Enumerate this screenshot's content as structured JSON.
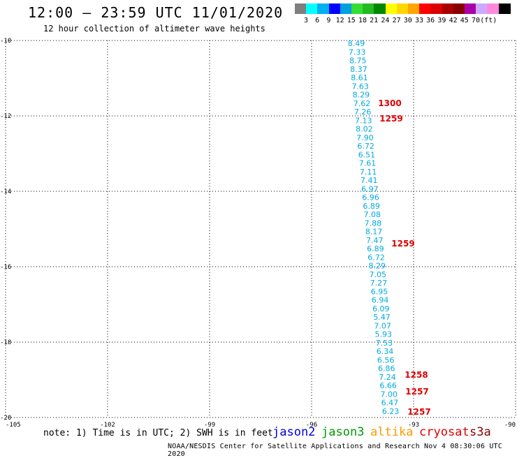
{
  "title": "12:00 — 23:59 UTC 11/01/2020",
  "subtitle": "12 hour collection of altimeter wave heights",
  "color_scale": {
    "colors": [
      "#7f7f7f",
      "#00ffff",
      "#00b0f0",
      "#0000ff",
      "#009fdf",
      "#33dd33",
      "#22bb22",
      "#008800",
      "#ffff00",
      "#ffd700",
      "#ffa500",
      "#ff0000",
      "#dd0000",
      "#aa0000",
      "#880000",
      "#aa00aa",
      "#ccaaff",
      "#ff88dd",
      "#000000"
    ],
    "labels": [
      "3",
      "6",
      "9",
      "12",
      "15",
      "18",
      "21",
      "24",
      "27",
      "30",
      "33",
      "36",
      "39",
      "42",
      "45",
      "70",
      "(ft)"
    ]
  },
  "axes": {
    "lat_labels": [
      "-10",
      "-12",
      "-14",
      "-16",
      "-18",
      "-20"
    ],
    "lon_labels": [
      "-105",
      "-102",
      "-99",
      "-96",
      "-93",
      "-90"
    ]
  },
  "wave_heights": {
    "color": "#00aadd",
    "values": [
      "8.49",
      "7.33",
      "8.75",
      "8.37",
      "8.61",
      "7.63",
      "8.29",
      "7.62",
      "7.26",
      "7.13",
      "8.02",
      "7.90",
      "6.72",
      "6.51",
      "7.61",
      "7.11",
      "7.41",
      "6.97",
      "6.96",
      "6.89",
      "7.08",
      "7.88",
      "8.17",
      "7.47",
      "6.89",
      "6.72",
      "8.29",
      "7.05",
      "7.27",
      "6.95",
      "6.94",
      "6.09",
      "5.47",
      "7.07",
      "5.93",
      "7.53",
      "6.34",
      "6.56",
      "6.86",
      "7.24",
      "6.66",
      "7.00",
      "6.47",
      "6.23"
    ]
  },
  "time_labels": {
    "color": "#dd0000",
    "values": [
      "1300",
      "1259",
      "1259",
      "1258",
      "1257",
      "1257"
    ]
  },
  "note": "note: 1) Time is in UTC; 2) SWH is in feet",
  "satellites": [
    {
      "name": "jason2",
      "color": "#0000dd"
    },
    {
      "name": "jason3",
      "color": "#009900"
    },
    {
      "name": "altika",
      "color": "#ff9900"
    },
    {
      "name": "cryosat",
      "color": "#dd0000"
    },
    {
      "name": "s3a",
      "color": "#880000"
    }
  ],
  "footer": "NOAA/NESDIS Center for Satellite Applications and Research   Nov  4 08:30:06 UTC 2020"
}
